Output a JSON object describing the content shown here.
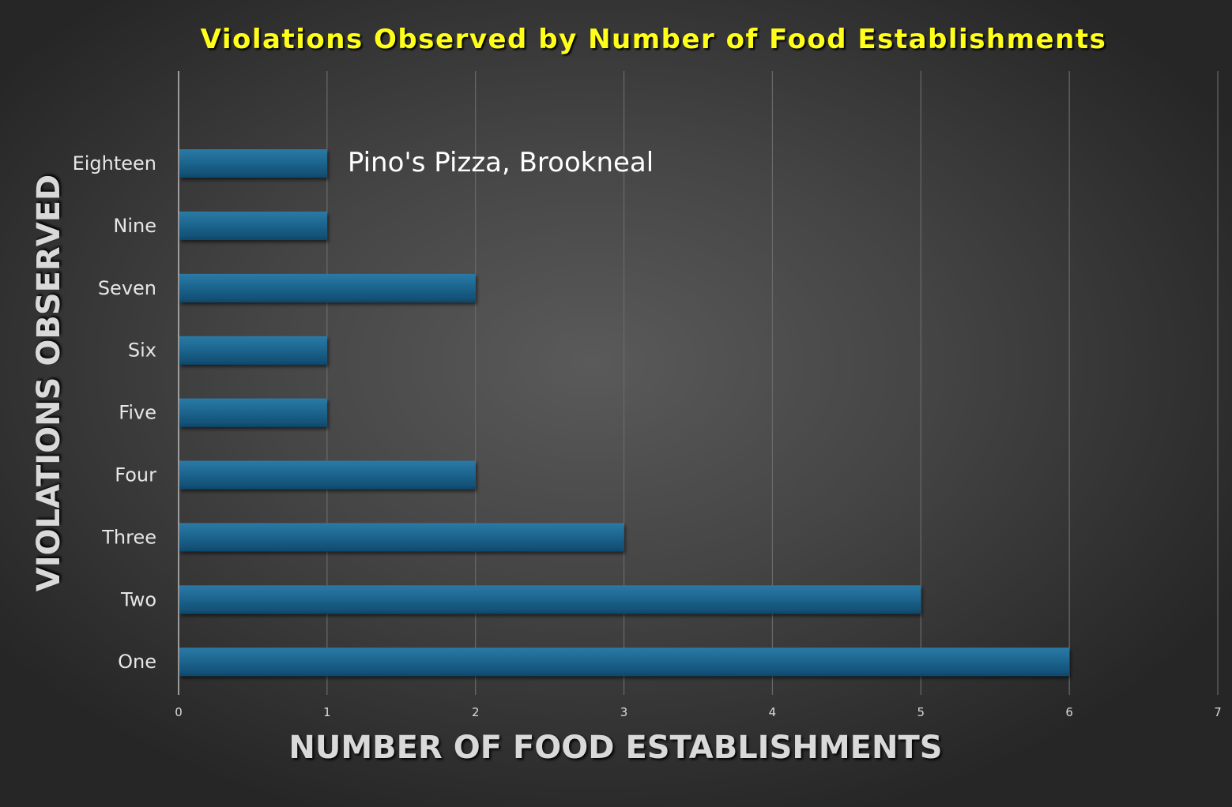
{
  "chart_data": {
    "type": "bar",
    "orientation": "horizontal",
    "title": "Violations Observed by Number of Food Establishments",
    "xlabel": "NUMBER OF FOOD ESTABLISHMENTS",
    "ylabel": "VIOLATIONS OBSERVED",
    "categories": [
      "Eighteen",
      "Nine",
      "Seven",
      "Six",
      "Five",
      "Four",
      "Three",
      "Two",
      "One"
    ],
    "values": [
      1,
      1,
      2,
      1,
      1,
      2,
      3,
      5,
      6
    ],
    "xlim": [
      0,
      7
    ],
    "xticks": [
      "0",
      "1",
      "2",
      "3",
      "4",
      "5",
      "6",
      "7"
    ],
    "grid": true,
    "annotations": [
      {
        "text": "Pino's Pizza, Brookneal",
        "category": "Eighteen"
      }
    ],
    "colors": {
      "bar": "#1f5f85",
      "title": "#ffff1a",
      "background": "#3a3a3a"
    }
  }
}
